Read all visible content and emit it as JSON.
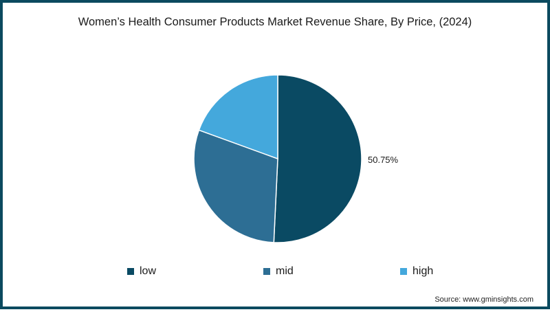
{
  "chart_data": {
    "type": "pie",
    "title": "Women’s Health Consumer Products Market Revenue Share, By Price, (2024)",
    "categories": [
      "low",
      "mid",
      "high"
    ],
    "values": [
      50.75,
      29.8,
      19.45
    ],
    "units": "%",
    "colors": [
      "#0a4a63",
      "#2d6e94",
      "#44a8dc"
    ],
    "data_labels": [
      {
        "category": "low",
        "text": "50.75%"
      }
    ],
    "start_angle": "12 o'clock",
    "direction": "clockwise",
    "legend_position": "bottom",
    "source": "Source: www.gminsights.com"
  },
  "header": {
    "title": "Women’s Health Consumer Products Market Revenue Share, By Price, (2024)"
  },
  "pie": {
    "label_low": "50.75%"
  },
  "legend": {
    "items": [
      {
        "label": "low",
        "color": "#0a4a63"
      },
      {
        "label": "mid",
        "color": "#2d6e94"
      },
      {
        "label": "high",
        "color": "#44a8dc"
      }
    ]
  },
  "footer": {
    "source": "Source: www.gminsights.com"
  },
  "style": {
    "border_color": "#0b4a5f"
  }
}
